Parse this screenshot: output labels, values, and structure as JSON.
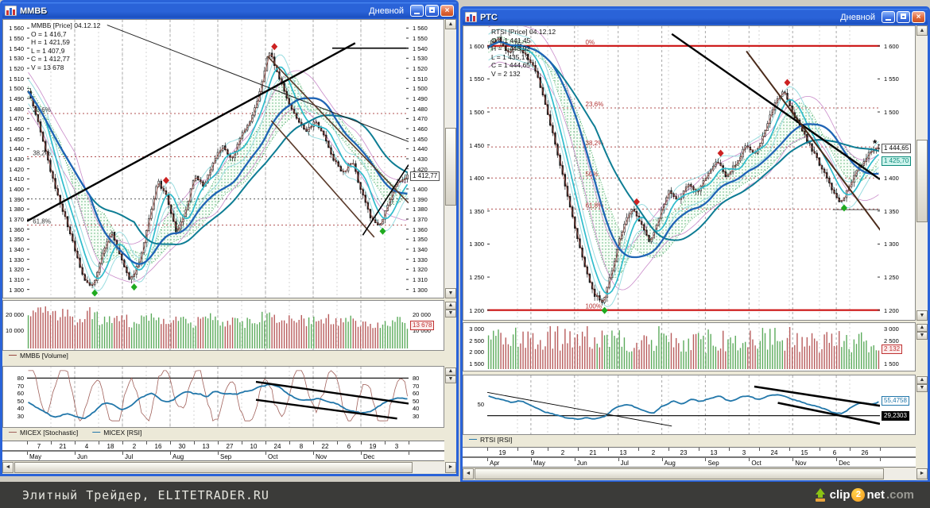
{
  "icons": {
    "up": "▲",
    "down": "▼",
    "left": "◄",
    "right": "►"
  },
  "colors": {
    "titlebar_blue": "#2a63d8",
    "close_red": "#d9542b",
    "candle_up": "#f8f8f8",
    "candle_down": "#1a1a1a",
    "cloud_green": "#2e9e4f",
    "ma_fast_cyan": "#2fbccc",
    "ma_slow_blue": "#1f64b5",
    "ma_teal": "#0e7d94",
    "envelope_magenta": "#c98ac9",
    "price_line_red": "#9a4a42",
    "volume_up": "#5cab5c",
    "volume_down": "#b85c5c",
    "rsi_blue": "#2277aa",
    "stoch_brown": "#a0605a",
    "fib_red": "#b03030",
    "marker_up_green": "#1faa1f",
    "marker_down_red": "#cc2222"
  },
  "footer": {
    "credit": "Элитный Трейдер, ELITETRADER.RU",
    "logo": {
      "clip": "clip",
      "two": "2",
      "net": "net",
      "com": ".com"
    }
  },
  "windows": [
    {
      "title": "ММВБ",
      "period_label": "Дневной",
      "window_controls": {
        "minimize": "_",
        "maximize": "□",
        "close": "×"
      },
      "price_legend": {
        "line1": "ММВБ [Price] 04.12.12",
        "o": "O = 1 416,7",
        "h": "H = 1 421,59",
        "l": "L = 1 407,9",
        "c": "C = 1 412,77",
        "v": "V = 13 678"
      },
      "volume_legend": {
        "name": "ММВБ [Volume]",
        "color": "#9a4a42"
      },
      "osc_legend": [
        {
          "name": "MICEX [Stochastic]",
          "color": "#a0605a"
        },
        {
          "name": "MICEX [RSI]",
          "color": "#2277aa"
        }
      ]
    },
    {
      "title": "РТС",
      "period_label": "Дневной",
      "window_controls": {
        "minimize": "_",
        "maximize": "□",
        "close": "×"
      },
      "price_legend": {
        "line1": "RTSI [Price] 04.12.12",
        "o": "O = 1 441,45",
        "h": "H = 1 448,92",
        "l": "L = 1 435,17",
        "c": "C = 1 444,65",
        "v": "V = 2 132"
      },
      "osc_legend": [
        {
          "name": "RTSI [RSI]",
          "color": "#2277aa"
        }
      ]
    }
  ],
  "chart_data": [
    {
      "type": "candlestick",
      "symbol": "ММВБ",
      "timeframe": "Дневной",
      "ylim": [
        1295,
        1565
      ],
      "y_ticks": {
        "start": 1560,
        "end": 1300,
        "step": 10
      },
      "x_day_labels": [
        "7",
        "21",
        "4",
        "18",
        "2",
        "16",
        "30",
        "13",
        "27",
        "10",
        "24",
        "8",
        "22",
        "6",
        "19",
        "3"
      ],
      "x_month_labels": [
        "May",
        "Jun",
        "Jul",
        "Aug",
        "Sep",
        "Oct",
        "Nov",
        "Dec"
      ],
      "closes": [
        1497,
        1468,
        1432,
        1398,
        1372,
        1340,
        1310,
        1303,
        1335,
        1358,
        1332,
        1308,
        1327,
        1368,
        1408,
        1392,
        1356,
        1378,
        1415,
        1402,
        1428,
        1442,
        1430,
        1452,
        1468,
        1495,
        1538,
        1515,
        1488,
        1472,
        1456,
        1468,
        1452,
        1430,
        1415,
        1428,
        1398,
        1372,
        1362,
        1388,
        1408,
        1413
      ],
      "last_close": 1412.77,
      "price_labels": [
        {
          "text": "1 412,77",
          "price": 1412.77,
          "bg": "#ffffff",
          "color": "#000000",
          "border": "#555555"
        }
      ],
      "fib_label_x": 0.015,
      "fib_color": "#333333",
      "fib_levels": [
        {
          "label": "23,6%",
          "price": 1475
        },
        {
          "label": "38,2%",
          "price": 1432
        },
        {
          "label": "61,8%",
          "price": 1364
        }
      ],
      "extra_hlines": [
        {
          "price": 1540,
          "fx1": 0.8,
          "fx2": 1.0,
          "color": "#000000",
          "width": 1.6,
          "dash": ""
        },
        {
          "price": 1390,
          "fx1": 0.0,
          "fx2": 1.0,
          "color": "#444444",
          "width": 0.8,
          "dash": "2,3"
        }
      ],
      "trendlines": [
        {
          "fx1": 0.0,
          "p1": 1368,
          "fx2": 0.86,
          "p2": 1545,
          "color": "#000000",
          "width": 2.4
        },
        {
          "fx1": 0.21,
          "p1": 1563,
          "fx2": 1.0,
          "p2": 1447,
          "color": "#222222",
          "width": 1
        },
        {
          "fx1": 0.63,
          "p1": 1532,
          "fx2": 1.0,
          "p2": 1386,
          "color": "#5a3a2a",
          "width": 1.6
        },
        {
          "fx1": 0.64,
          "p1": 1468,
          "fx2": 0.91,
          "p2": 1352,
          "color": "#5a3a2a",
          "width": 1.6
        },
        {
          "fx1": 0.88,
          "p1": 1354,
          "fx2": 1.0,
          "p2": 1424,
          "color": "#000000",
          "width": 1.6
        }
      ],
      "extra_markers": [],
      "volume": {
        "vmin": 0,
        "vmax": 27000,
        "ticks": [
          {
            "v": 20000,
            "label": "20 000"
          },
          {
            "v": 10000,
            "label": "10 000"
          }
        ],
        "last_label": {
          "text": "13 678",
          "v": 13678
        },
        "values": [
          17500,
          21000,
          24500,
          19000,
          22000,
          16000,
          18500,
          21500,
          15000,
          17000,
          19500,
          14500,
          16500,
          18000,
          15500,
          17500,
          19000,
          16000,
          14500,
          17000,
          18500,
          15500,
          16500,
          14000,
          15500,
          17500,
          20500,
          18000,
          16000,
          17000,
          15500,
          16500,
          18000,
          15000,
          16500,
          17500,
          14500,
          13000,
          12500,
          15500,
          17000,
          13678
        ]
      },
      "osc": {
        "range": [
          20,
          92
        ],
        "ticks_left": [
          80,
          70,
          60,
          50,
          40,
          30
        ],
        "ticks_right": [
          80,
          70,
          60,
          50,
          40,
          30
        ],
        "hlines": [
          {
            "v": 80,
            "color": "#000000",
            "width": 1.2
          }
        ],
        "rsi": [
          46,
          38,
          30,
          27,
          32,
          28,
          28,
          36,
          48,
          44,
          38,
          46,
          56,
          60,
          52,
          47,
          57,
          62,
          58,
          55,
          62,
          60,
          57,
          62,
          64,
          68,
          74,
          66,
          57,
          52,
          49,
          55,
          50,
          46,
          40,
          36,
          33,
          38,
          45,
          50,
          53,
          52
        ],
        "stochastic": {
          "base": 55,
          "a1": 30,
          "f1": 0.46,
          "a2": 13,
          "f2": 0.12,
          "min": 23,
          "max": 90
        },
        "trendlines": [
          {
            "fx1": 0.6,
            "v1": 75,
            "fx2": 1.0,
            "v2": 46,
            "color": "#000000",
            "width": 2.4
          },
          {
            "fx1": 0.6,
            "v1": 51,
            "fx2": 0.97,
            "v2": 26,
            "color": "#000000",
            "width": 2.4
          }
        ],
        "right_labels": []
      }
    },
    {
      "type": "candlestick",
      "symbol": "РТС",
      "timeframe": "Дневной",
      "ylim": [
        1190,
        1625
      ],
      "y_ticks": {
        "start": 1600,
        "end": 1200,
        "step": 50
      },
      "x_day_labels": [
        "19",
        "9",
        "2",
        "21",
        "13",
        "2",
        "23",
        "13",
        "3",
        "24",
        "15",
        "6",
        "26"
      ],
      "x_month_labels": [
        "Apr",
        "May",
        "Jun",
        "Jul",
        "Aug",
        "Sep",
        "Oct",
        "Nov",
        "Dec"
      ],
      "closes": [
        1598,
        1612,
        1588,
        1603,
        1585,
        1560,
        1510,
        1452,
        1390,
        1330,
        1272,
        1225,
        1212,
        1262,
        1320,
        1355,
        1332,
        1302,
        1345,
        1382,
        1365,
        1392,
        1378,
        1405,
        1428,
        1402,
        1422,
        1448,
        1438,
        1468,
        1512,
        1532,
        1498,
        1470,
        1442,
        1415,
        1385,
        1360,
        1392,
        1418,
        1438,
        1445
      ],
      "last_close": 1444.65,
      "price_labels": [
        {
          "text": "1 444,65",
          "price": 1444.65,
          "bg": "#ffffff",
          "color": "#000000",
          "border": "#555555"
        },
        {
          "text": "1 425,70",
          "price": 1425.7,
          "bg": "#cdf3ec",
          "color": "#0c8a7a",
          "border": "#0c8a7a"
        }
      ],
      "fib_label_x": 0.25,
      "fib_color": "#b03030",
      "fib_levels": [
        {
          "label": "0%",
          "price": 1600,
          "solid": true
        },
        {
          "label": "23,6%",
          "price": 1506
        },
        {
          "label": "38,2%",
          "price": 1447
        },
        {
          "label": "50%",
          "price": 1400
        },
        {
          "label": "61,8%",
          "price": 1353
        },
        {
          "label": "100%",
          "price": 1200,
          "solid": true
        }
      ],
      "extra_hlines": [
        {
          "price": 1352,
          "fx1": 0.88,
          "fx2": 1.0,
          "color": "#555555",
          "width": 1,
          "dash": ""
        }
      ],
      "trendlines": [
        {
          "fx1": 0.47,
          "p1": 1618,
          "fx2": 1.0,
          "p2": 1398,
          "color": "#000000",
          "width": 2.4
        },
        {
          "fx1": 0.66,
          "p1": 1592,
          "fx2": 1.02,
          "p2": 1306,
          "color": "#4a2a1a",
          "width": 2.0
        }
      ],
      "extra_markers": [
        {
          "fx": 0.982,
          "price": 1447,
          "glyph": "*",
          "color": "#000000"
        }
      ],
      "volume": {
        "vmin": 1350,
        "vmax": 3150,
        "ticks": [
          {
            "v": 3000,
            "label": "3 000"
          },
          {
            "v": 2500,
            "label": "2 500"
          },
          {
            "v": 2000,
            "label": "2 000"
          },
          {
            "v": 1500,
            "label": "1 500"
          }
        ],
        "ticks_right": [
          {
            "v": 3000,
            "label": "3 000"
          },
          {
            "v": 2500,
            "label": "2 500"
          },
          {
            "v": 1500,
            "label": "1 500"
          }
        ],
        "last_label": {
          "text": "2 132",
          "v": 2132
        },
        "values": [
          2450,
          2600,
          2500,
          2700,
          2550,
          2650,
          2480,
          2750,
          2500,
          2600,
          2850,
          2700,
          2550,
          2450,
          2600,
          2500,
          2400,
          2550,
          2650,
          2450,
          2500,
          2600,
          2400,
          2500,
          2550,
          2450,
          2600,
          2500,
          2400,
          2550,
          2700,
          2600,
          2500,
          2450,
          2550,
          2500,
          2600,
          2450,
          2500,
          2550,
          2480,
          2132
        ]
      },
      "osc": {
        "range": [
          5,
          95
        ],
        "ticks_left": [
          50
        ],
        "ticks_right": [],
        "hlines": [
          {
            "v": 30,
            "color": "#000000",
            "width": 1.2
          }
        ],
        "rsi": [
          62,
          58,
          52,
          55,
          48,
          42,
          36,
          30,
          26,
          24,
          28,
          25,
          30,
          42,
          50,
          46,
          38,
          33,
          45,
          55,
          50,
          58,
          54,
          60,
          63,
          55,
          60,
          64,
          58,
          62,
          68,
          64,
          56,
          52,
          48,
          42,
          36,
          33,
          45,
          52,
          50,
          55
        ],
        "stochastic": null,
        "trendlines": [
          {
            "fx1": 0.0,
            "v1": 70,
            "fx2": 0.47,
            "v2": 12,
            "color": "#000000",
            "width": 0.9
          },
          {
            "fx1": 0.68,
            "v1": 80,
            "fx2": 1.0,
            "v2": 47,
            "color": "#000000",
            "width": 2.6
          },
          {
            "fx1": 0.74,
            "v1": 52,
            "fx2": 1.0,
            "v2": 16,
            "color": "#000000",
            "width": 2.6
          }
        ],
        "right_labels": [
          {
            "text": "55,4758",
            "v": 55,
            "bg": "#ffffff",
            "color": "#2277aa",
            "border": "#2277aa"
          },
          {
            "text": "29,2303",
            "v": 29,
            "bg": "#000000",
            "color": "#ffffff",
            "border": "#000000"
          }
        ]
      }
    }
  ]
}
